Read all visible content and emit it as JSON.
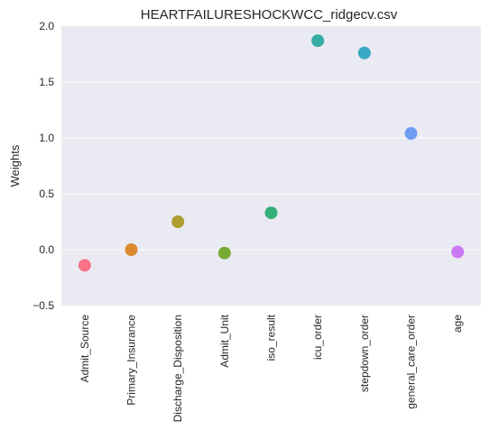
{
  "chart_data": {
    "type": "scatter",
    "title": "HEARTFAILURESHOCKWCC_ridgecv.csv",
    "xlabel": "",
    "ylabel": "Weights",
    "ylim": [
      -0.5,
      2.0
    ],
    "yticks": [
      -0.5,
      0.0,
      0.5,
      1.0,
      1.5,
      2.0
    ],
    "ytick_labels": [
      "−0.5",
      "0.0",
      "0.5",
      "1.0",
      "1.5",
      "2.0"
    ],
    "grid": true,
    "categories": [
      "Admit_Source",
      "Primary_Insurance",
      "Discharge_Disposition",
      "Admit_Unit",
      "iso_result",
      "icu_order",
      "stepdown_order",
      "general_care_order",
      "age"
    ],
    "values": [
      -0.14,
      0.0,
      0.25,
      -0.03,
      0.33,
      1.87,
      1.76,
      1.04,
      -0.02
    ],
    "colors": [
      "#f77189",
      "#dc8932",
      "#ae9d31",
      "#77ab31",
      "#33b07a",
      "#36ada4",
      "#38a9c5",
      "#6e9bf4",
      "#cc7af4",
      "#f565cc"
    ]
  }
}
